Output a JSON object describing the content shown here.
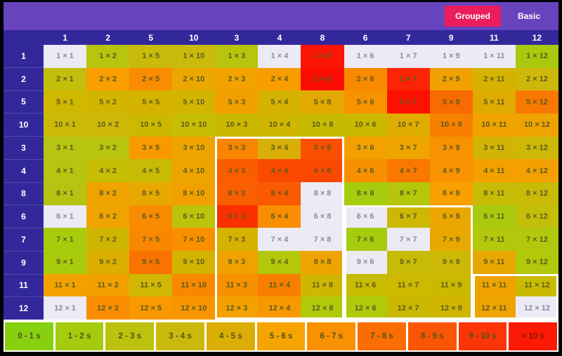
{
  "toolbar": {
    "grouped_label": "Grouped",
    "basic_label": "Basic"
  },
  "colors": {
    "frame": "#000000",
    "topbar": "#6843BE",
    "header": "#33289B",
    "grouped_button": "#EB1D5B",
    "white_cell": "#ECEAF5",
    "group_outline": "#FFFFFF",
    "legend_background": "#FFFFFF"
  },
  "chart_data": {
    "type": "heatmap",
    "x_labels": [
      "1",
      "2",
      "5",
      "10",
      "3",
      "4",
      "8",
      "6",
      "7",
      "9",
      "11",
      "12"
    ],
    "y_labels": [
      "1",
      "2",
      "5",
      "10",
      "3",
      "4",
      "8",
      "6",
      "7",
      "9",
      "11",
      "12"
    ],
    "groups": [
      [
        "1",
        "2",
        "5",
        "10"
      ],
      [
        "3",
        "4",
        "8"
      ],
      [
        "6",
        "7",
        "9"
      ],
      [
        "11",
        "12"
      ]
    ],
    "cells": [
      [
        {
          "l": "1 × 1",
          "c": "#ECEAF5"
        },
        {
          "l": "1 × 2",
          "c": "#B8C40E"
        },
        {
          "l": "1 × 5",
          "c": "#C8BB0B"
        },
        {
          "l": "1 × 10",
          "c": "#C9BA0B"
        },
        {
          "l": "1 × 3",
          "c": "#B9C40D"
        },
        {
          "l": "1 × 4",
          "c": "#ECEAF5"
        },
        {
          "l": "1 × 8",
          "c": "#FB1505"
        },
        {
          "l": "1 × 6",
          "c": "#ECEAF5"
        },
        {
          "l": "1 × 7",
          "c": "#ECEAF5"
        },
        {
          "l": "1 × 9",
          "c": "#ECEAF5"
        },
        {
          "l": "1 × 11",
          "c": "#ECEAF5"
        },
        {
          "l": "1 × 12",
          "c": "#A8C90E"
        }
      ],
      [
        {
          "l": "2 × 1",
          "c": "#C2BE0B"
        },
        {
          "l": "2 × 2",
          "c": "#F89E00"
        },
        {
          "l": "2 × 5",
          "c": "#F98C00"
        },
        {
          "l": "2 × 10",
          "c": "#EBA600"
        },
        {
          "l": "2 × 3",
          "c": "#F2A300"
        },
        {
          "l": "2 × 4",
          "c": "#F89C00"
        },
        {
          "l": "2 × 8",
          "c": "#FB0D04"
        },
        {
          "l": "2 × 6",
          "c": "#F88A00"
        },
        {
          "l": "2 × 7",
          "c": "#FB2505"
        },
        {
          "l": "2 × 9",
          "c": "#F0A000"
        },
        {
          "l": "2 × 11",
          "c": "#D6B200"
        },
        {
          "l": "2 × 12",
          "c": "#CDB80A"
        }
      ],
      [
        {
          "l": "5 × 1",
          "c": "#D0B700"
        },
        {
          "l": "5 × 2",
          "c": "#D3B500"
        },
        {
          "l": "5 × 5",
          "c": "#D5B400"
        },
        {
          "l": "5 × 10",
          "c": "#D3B500"
        },
        {
          "l": "5 × 3",
          "c": "#F2A000"
        },
        {
          "l": "5 × 4",
          "c": "#D4B300"
        },
        {
          "l": "5 × 8",
          "c": "#E2AA00"
        },
        {
          "l": "5 × 6",
          "c": "#F89300"
        },
        {
          "l": "5 × 7",
          "c": "#FC1100"
        },
        {
          "l": "5 × 9",
          "c": "#F96A00"
        },
        {
          "l": "5 × 11",
          "c": "#DFAB00"
        },
        {
          "l": "5 × 12",
          "c": "#F97800"
        }
      ],
      [
        {
          "l": "10 × 1",
          "c": "#CBB909"
        },
        {
          "l": "10 × 2",
          "c": "#CDB808"
        },
        {
          "l": "10 × 5",
          "c": "#CDB800"
        },
        {
          "l": "10 × 10",
          "c": "#C7BD05"
        },
        {
          "l": "10 × 3",
          "c": "#CBB900"
        },
        {
          "l": "10 × 4",
          "c": "#CFB700"
        },
        {
          "l": "10 × 8",
          "c": "#C6BB00"
        },
        {
          "l": "10 × 6",
          "c": "#C9BA00"
        },
        {
          "l": "10 × 7",
          "c": "#DFAC00"
        },
        {
          "l": "10 × 9",
          "c": "#F88000"
        },
        {
          "l": "10 × 11",
          "c": "#F0A200"
        },
        {
          "l": "10 × 12",
          "c": "#EFA300"
        }
      ],
      [
        {
          "l": "3 × 1",
          "c": "#B5C511"
        },
        {
          "l": "3 × 2",
          "c": "#B9C40D"
        },
        {
          "l": "3 × 5",
          "c": "#F89900"
        },
        {
          "l": "3 × 10",
          "c": "#EFA300"
        },
        {
          "l": "3 × 3",
          "c": "#F98500"
        },
        {
          "l": "3 × 4",
          "c": "#D8AF06"
        },
        {
          "l": "3 × 8",
          "c": "#FA5000"
        },
        {
          "l": "3 × 6",
          "c": "#F4A000"
        },
        {
          "l": "3 × 7",
          "c": "#EFA500"
        },
        {
          "l": "3 × 9",
          "c": "#F89200"
        },
        {
          "l": "3 × 11",
          "c": "#D2B404"
        },
        {
          "l": "3 × 12",
          "c": "#CEB806"
        }
      ],
      [
        {
          "l": "4 × 1",
          "c": "#B7C410"
        },
        {
          "l": "4 × 2",
          "c": "#C6BD05"
        },
        {
          "l": "4 × 5",
          "c": "#C9BB05"
        },
        {
          "l": "4 × 10",
          "c": "#EEA400"
        },
        {
          "l": "4 × 3",
          "c": "#FA5C00"
        },
        {
          "l": "4 × 4",
          "c": "#FA4A00"
        },
        {
          "l": "4 × 8",
          "c": "#FA4800"
        },
        {
          "l": "4 × 6",
          "c": "#F89000"
        },
        {
          "l": "4 × 7",
          "c": "#F97800"
        },
        {
          "l": "4 × 9",
          "c": "#F89200"
        },
        {
          "l": "4 × 11",
          "c": "#F4A000"
        },
        {
          "l": "4 × 12",
          "c": "#F3A000"
        }
      ],
      [
        {
          "l": "8 × 1",
          "c": "#B6C411"
        },
        {
          "l": "8 × 2",
          "c": "#EEA300"
        },
        {
          "l": "8 × 5",
          "c": "#E8A800"
        },
        {
          "l": "8 × 10",
          "c": "#F2A000"
        },
        {
          "l": "8 × 3",
          "c": "#F95F00"
        },
        {
          "l": "8 × 4",
          "c": "#FA5A00"
        },
        {
          "l": "8 × 8",
          "c": "#ECEAF5"
        },
        {
          "l": "8 × 6",
          "c": "#A6CC0E"
        },
        {
          "l": "8 × 7",
          "c": "#B4C70B"
        },
        {
          "l": "8 × 9",
          "c": "#F99F00"
        },
        {
          "l": "8 × 11",
          "c": "#C8BB06"
        },
        {
          "l": "8 × 12",
          "c": "#C9BA06"
        }
      ],
      [
        {
          "l": "6 × 1",
          "c": "#ECEAF5"
        },
        {
          "l": "6 × 2",
          "c": "#EFA400"
        },
        {
          "l": "6 × 5",
          "c": "#F88C00"
        },
        {
          "l": "6 × 10",
          "c": "#BCC30B"
        },
        {
          "l": "6 × 3",
          "c": "#FB3000"
        },
        {
          "l": "6 × 4",
          "c": "#F98E00"
        },
        {
          "l": "6 × 8",
          "c": "#ECEAF5"
        },
        {
          "l": "6 × 6",
          "c": "#ECEAF5"
        },
        {
          "l": "6 × 7",
          "c": "#CDB805"
        },
        {
          "l": "6 × 9",
          "c": "#EBA600"
        },
        {
          "l": "6 × 11",
          "c": "#A9CA0D"
        },
        {
          "l": "6 × 12",
          "c": "#C2BE09"
        }
      ],
      [
        {
          "l": "7 × 1",
          "c": "#A8CB0C"
        },
        {
          "l": "7 × 2",
          "c": "#D0B500"
        },
        {
          "l": "7 × 5",
          "c": "#F98800"
        },
        {
          "l": "7 × 10",
          "c": "#F89000"
        },
        {
          "l": "7 × 3",
          "c": "#D6B200"
        },
        {
          "l": "7 × 4",
          "c": "#ECEAF5"
        },
        {
          "l": "7 × 8",
          "c": "#ECEAF5"
        },
        {
          "l": "7 × 6",
          "c": "#A6CC0E"
        },
        {
          "l": "7 × 7",
          "c": "#ECEAF5"
        },
        {
          "l": "7 × 9",
          "c": "#E9A800"
        },
        {
          "l": "7 × 11",
          "c": "#B2C80C"
        },
        {
          "l": "7 × 12",
          "c": "#B1C80C"
        }
      ],
      [
        {
          "l": "9 × 1",
          "c": "#A8CB0C"
        },
        {
          "l": "9 × 2",
          "c": "#DCAE00"
        },
        {
          "l": "9 × 5",
          "c": "#F87300"
        },
        {
          "l": "9 × 10",
          "c": "#D2B400"
        },
        {
          "l": "9 × 3",
          "c": "#F0A200"
        },
        {
          "l": "9 × 4",
          "c": "#B5C70B"
        },
        {
          "l": "9 × 8",
          "c": "#EFA300"
        },
        {
          "l": "9 × 6",
          "c": "#ECEAF5"
        },
        {
          "l": "9 × 7",
          "c": "#C8BB06"
        },
        {
          "l": "9 × 9",
          "c": "#CDB805"
        },
        {
          "l": "9 × 11",
          "c": "#E9A702"
        },
        {
          "l": "9 × 12",
          "c": "#B2C80B"
        }
      ],
      [
        {
          "l": "11 × 1",
          "c": "#F3A100"
        },
        {
          "l": "11 × 2",
          "c": "#F2A000"
        },
        {
          "l": "11 × 5",
          "c": "#D0B704"
        },
        {
          "l": "11 × 10",
          "c": "#F98800"
        },
        {
          "l": "11 × 3",
          "c": "#F89000"
        },
        {
          "l": "11 × 4",
          "c": "#F87E00"
        },
        {
          "l": "11 × 8",
          "c": "#CFB600"
        },
        {
          "l": "11 × 6",
          "c": "#C9BB00"
        },
        {
          "l": "11 × 7",
          "c": "#CCB900"
        },
        {
          "l": "11 × 9",
          "c": "#CBB900"
        },
        {
          "l": "11 × 11",
          "c": "#F0A300"
        },
        {
          "l": "11 × 12",
          "c": "#C9BA00"
        }
      ],
      [
        {
          "l": "12 × 1",
          "c": "#ECEAF5"
        },
        {
          "l": "12 × 2",
          "c": "#F98F00"
        },
        {
          "l": "12 × 5",
          "c": "#F89900"
        },
        {
          "l": "12 × 10",
          "c": "#F89500"
        },
        {
          "l": "12 × 3",
          "c": "#F2A100"
        },
        {
          "l": "12 × 4",
          "c": "#F89800"
        },
        {
          "l": "12 × 8",
          "c": "#B0C90B"
        },
        {
          "l": "12 × 6",
          "c": "#AFCA0B"
        },
        {
          "l": "12 × 7",
          "c": "#CBB800"
        },
        {
          "l": "12 × 9",
          "c": "#D0B600"
        },
        {
          "l": "12 × 11",
          "c": "#EFA300"
        },
        {
          "l": "12 × 12",
          "c": "#ECEAF5"
        }
      ]
    ]
  },
  "legend": {
    "items": [
      {
        "label": "0 - 1 s",
        "color": "#87D00F"
      },
      {
        "label": "1 - 2 s",
        "color": "#A4CB0E"
      },
      {
        "label": "2 - 3 s",
        "color": "#BCC20E"
      },
      {
        "label": "3 - 4 s",
        "color": "#CBB90D"
      },
      {
        "label": "4 - 5 s",
        "color": "#DCAD07"
      },
      {
        "label": "5 - 6 s",
        "color": "#F5A402"
      },
      {
        "label": "6 - 7 s",
        "color": "#F99102"
      },
      {
        "label": "7 - 8 s",
        "color": "#FA6D03"
      },
      {
        "label": "8 - 9 s",
        "color": "#FA5505"
      },
      {
        "label": "9 - 10 s",
        "color": "#FB3508"
      },
      {
        "label": "> 10 s",
        "color": "#FC1A04"
      }
    ]
  }
}
